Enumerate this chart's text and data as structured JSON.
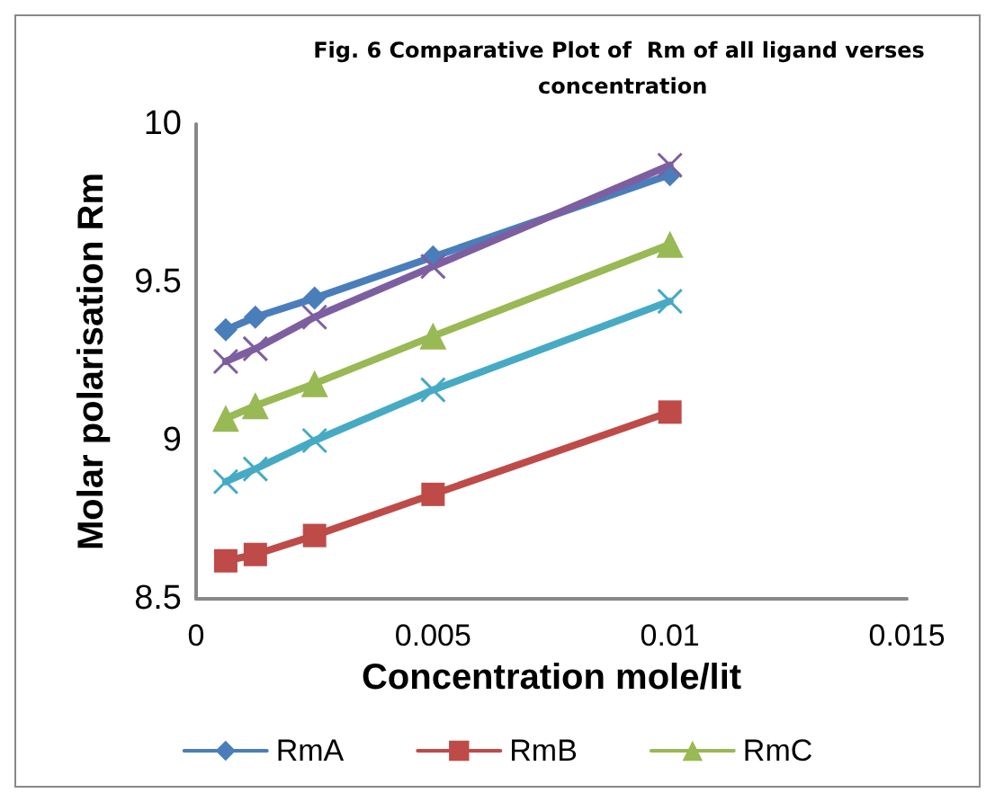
{
  "chart_data": {
    "type": "line",
    "title": "Fig. 6 Comparative Plot of  Rm of all ligand verses concentration",
    "xlabel": "Concentration mole/lit",
    "ylabel": "Molar polarisation Rm",
    "x": [
      0.000625,
      0.00125,
      0.0025,
      0.005,
      0.01
    ],
    "series": [
      {
        "name": "RmA",
        "color": "#4a7ebb",
        "marker": "diamond",
        "values": [
          9.35,
          9.39,
          9.45,
          9.58,
          9.84
        ]
      },
      {
        "name": "RmB",
        "color": "#be4b48",
        "marker": "square",
        "values": [
          8.62,
          8.64,
          8.7,
          8.83,
          9.09
        ]
      },
      {
        "name": "RmC",
        "color": "#98b954",
        "marker": "triangle",
        "values": [
          9.07,
          9.11,
          9.18,
          9.33,
          9.62
        ]
      },
      {
        "color": "#7d5fa0",
        "marker": "cross",
        "values": [
          9.25,
          9.29,
          9.39,
          9.55,
          9.87
        ]
      },
      {
        "color": "#46aac5",
        "marker": "cross",
        "values": [
          8.87,
          8.91,
          9.0,
          9.16,
          9.44
        ]
      }
    ],
    "xlim": [
      0,
      0.015
    ],
    "xticks": [
      0,
      0.005,
      0.01,
      0.015
    ],
    "ylim": [
      8.5,
      10
    ],
    "yticks": [
      8.5,
      9,
      9.5,
      10
    ],
    "grid": false,
    "legend": "bottom",
    "line_style": "solid"
  }
}
